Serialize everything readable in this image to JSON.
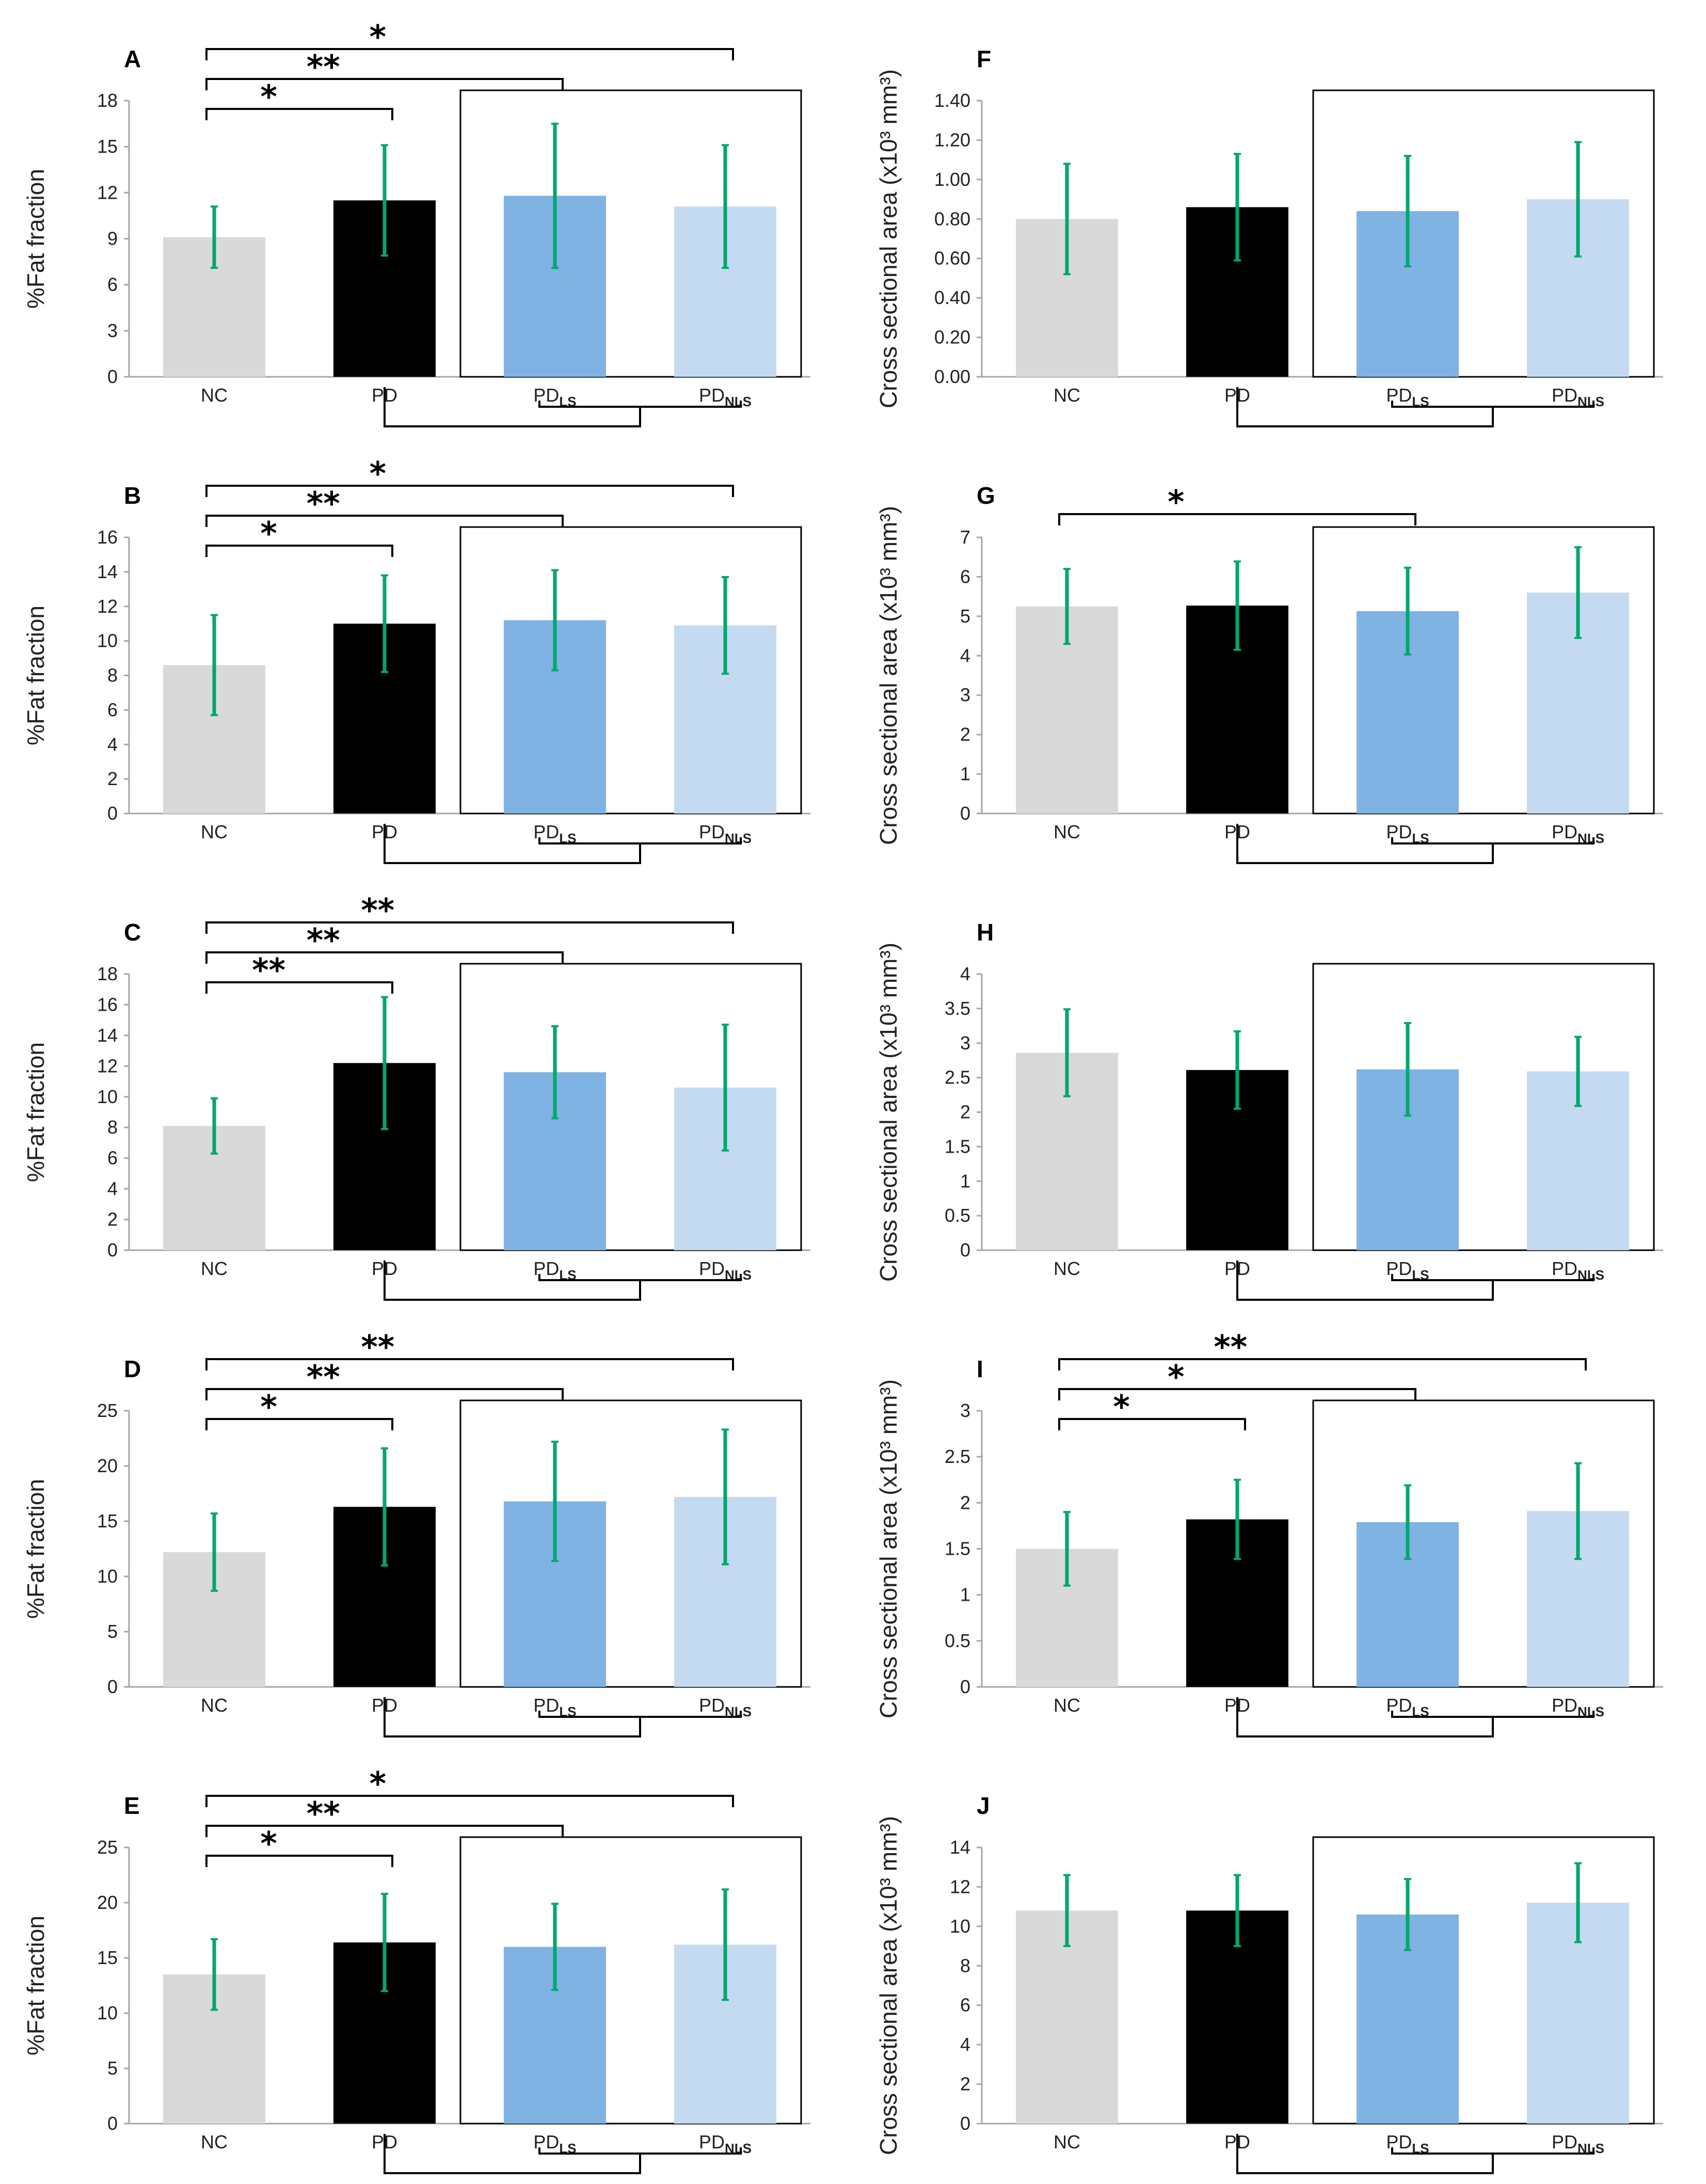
{
  "colors": {
    "NC": "#d9d9d9",
    "PD": "#000000",
    "PD_LS": "#7fb3e3",
    "PD_NLS": "#c3daf1",
    "error": "#00a86b",
    "axis": "#a6a6a6",
    "bracket": "#000000"
  },
  "chart_data": [
    {
      "id": "A",
      "letter": "A",
      "type": "bar",
      "ylabel": "%Fat fraction",
      "categories": [
        {
          "base": "NC",
          "sub": ""
        },
        {
          "base": "PD",
          "sub": ""
        },
        {
          "base": "PD",
          "sub": "LS"
        },
        {
          "base": "PD",
          "sub": "NLS"
        }
      ],
      "values": [
        9.1,
        11.5,
        11.8,
        11.1
      ],
      "errors": [
        2.0,
        3.6,
        4.7,
        4.0
      ],
      "yticks": [
        "0",
        "3",
        "6",
        "9",
        "12",
        "15",
        "18"
      ],
      "ylim": [
        0,
        18
      ],
      "significance": [
        {
          "from": 0,
          "to": 1,
          "label": "*"
        },
        {
          "from": 0,
          "to": 2,
          "label": "**"
        },
        {
          "from": 0,
          "to": 3,
          "label": "*"
        }
      ]
    },
    {
      "id": "B",
      "letter": "B",
      "type": "bar",
      "ylabel": "%Fat fraction",
      "categories": [
        {
          "base": "NC",
          "sub": ""
        },
        {
          "base": "PD",
          "sub": ""
        },
        {
          "base": "PD",
          "sub": "LS"
        },
        {
          "base": "PD",
          "sub": "NLS"
        }
      ],
      "values": [
        8.6,
        11.0,
        11.2,
        10.9
      ],
      "errors": [
        2.9,
        2.8,
        2.9,
        2.8
      ],
      "yticks": [
        "0",
        "2",
        "4",
        "6",
        "8",
        "10",
        "12",
        "14",
        "16"
      ],
      "ylim": [
        0,
        16
      ],
      "significance": [
        {
          "from": 0,
          "to": 1,
          "label": "*"
        },
        {
          "from": 0,
          "to": 2,
          "label": "**"
        },
        {
          "from": 0,
          "to": 3,
          "label": "*"
        }
      ]
    },
    {
      "id": "C",
      "letter": "C",
      "type": "bar",
      "ylabel": "%Fat fraction",
      "categories": [
        {
          "base": "NC",
          "sub": ""
        },
        {
          "base": "PD",
          "sub": ""
        },
        {
          "base": "PD",
          "sub": "LS"
        },
        {
          "base": "PD",
          "sub": "NLS"
        }
      ],
      "values": [
        8.1,
        12.2,
        11.6,
        10.6
      ],
      "errors": [
        1.8,
        4.3,
        3.0,
        4.1
      ],
      "yticks": [
        "0",
        "2",
        "4",
        "6",
        "8",
        "10",
        "12",
        "14",
        "16",
        "18"
      ],
      "ylim": [
        0,
        18
      ],
      "significance": [
        {
          "from": 0,
          "to": 1,
          "label": "**"
        },
        {
          "from": 0,
          "to": 2,
          "label": "**"
        },
        {
          "from": 0,
          "to": 3,
          "label": "**"
        }
      ]
    },
    {
      "id": "D",
      "letter": "D",
      "type": "bar",
      "ylabel": "%Fat fraction",
      "categories": [
        {
          "base": "NC",
          "sub": ""
        },
        {
          "base": "PD",
          "sub": ""
        },
        {
          "base": "PD",
          "sub": "LS"
        },
        {
          "base": "PD",
          "sub": "NLS"
        }
      ],
      "values": [
        12.2,
        16.3,
        16.8,
        17.2
      ],
      "errors": [
        3.5,
        5.3,
        5.4,
        6.1
      ],
      "yticks": [
        "0",
        "5",
        "10",
        "15",
        "20",
        "25"
      ],
      "ylim": [
        0,
        25
      ],
      "significance": [
        {
          "from": 0,
          "to": 1,
          "label": "*"
        },
        {
          "from": 0,
          "to": 2,
          "label": "**"
        },
        {
          "from": 0,
          "to": 3,
          "label": "**"
        }
      ]
    },
    {
      "id": "E",
      "letter": "E",
      "type": "bar",
      "ylabel": "%Fat fraction",
      "categories": [
        {
          "base": "NC",
          "sub": ""
        },
        {
          "base": "PD",
          "sub": ""
        },
        {
          "base": "PD",
          "sub": "LS"
        },
        {
          "base": "PD",
          "sub": "NLS"
        }
      ],
      "values": [
        13.5,
        16.4,
        16.0,
        16.2
      ],
      "errors": [
        3.2,
        4.4,
        3.9,
        5.0
      ],
      "yticks": [
        "0",
        "5",
        "10",
        "15",
        "20",
        "25"
      ],
      "ylim": [
        0,
        25
      ],
      "significance": [
        {
          "from": 0,
          "to": 1,
          "label": "*"
        },
        {
          "from": 0,
          "to": 2,
          "label": "**"
        },
        {
          "from": 0,
          "to": 3,
          "label": "*"
        }
      ]
    },
    {
      "id": "F",
      "letter": "F",
      "type": "bar",
      "ylabel": "Cross sectional area (x10³ mm³)",
      "categories": [
        {
          "base": "NC",
          "sub": ""
        },
        {
          "base": "PD",
          "sub": ""
        },
        {
          "base": "PD",
          "sub": "LS"
        },
        {
          "base": "PD",
          "sub": "NLS"
        }
      ],
      "values": [
        0.8,
        0.86,
        0.84,
        0.9
      ],
      "errors": [
        0.28,
        0.27,
        0.28,
        0.29
      ],
      "yticks": [
        "0.00",
        "0.20",
        "0.40",
        "0.60",
        "0.80",
        "1.00",
        "1.20",
        "1.40"
      ],
      "ylim": [
        0,
        1.4
      ],
      "significance": []
    },
    {
      "id": "G",
      "letter": "G",
      "type": "bar",
      "ylabel": "Cross sectional area (x10³ mm³)",
      "categories": [
        {
          "base": "NC",
          "sub": ""
        },
        {
          "base": "PD",
          "sub": ""
        },
        {
          "base": "PD",
          "sub": "LS"
        },
        {
          "base": "PD",
          "sub": "NLS"
        }
      ],
      "values": [
        5.25,
        5.27,
        5.13,
        5.6
      ],
      "errors": [
        0.95,
        1.12,
        1.1,
        1.15
      ],
      "yticks": [
        "0",
        "1",
        "2",
        "3",
        "4",
        "5",
        "6",
        "7"
      ],
      "ylim": [
        0,
        7
      ],
      "significance": [
        {
          "from": 0,
          "to": 2,
          "label": "*"
        }
      ]
    },
    {
      "id": "H",
      "letter": "H",
      "type": "bar",
      "ylabel": "Cross sectional area (x10³ mm³)",
      "categories": [
        {
          "base": "NC",
          "sub": ""
        },
        {
          "base": "PD",
          "sub": ""
        },
        {
          "base": "PD",
          "sub": "LS"
        },
        {
          "base": "PD",
          "sub": "NLS"
        }
      ],
      "values": [
        2.86,
        2.61,
        2.62,
        2.59
      ],
      "errors": [
        0.63,
        0.56,
        0.67,
        0.5
      ],
      "yticks": [
        "0",
        "0.5",
        "1",
        "1.5",
        "2",
        "2.5",
        "3",
        "3.5",
        "4"
      ],
      "ylim": [
        0,
        4
      ],
      "significance": []
    },
    {
      "id": "I",
      "letter": "I",
      "type": "bar",
      "ylabel": "Cross sectional area (x10³ mm³)",
      "categories": [
        {
          "base": "NC",
          "sub": ""
        },
        {
          "base": "PD",
          "sub": ""
        },
        {
          "base": "PD",
          "sub": "LS"
        },
        {
          "base": "PD",
          "sub": "NLS"
        }
      ],
      "values": [
        1.5,
        1.82,
        1.79,
        1.91
      ],
      "errors": [
        0.4,
        0.43,
        0.4,
        0.52
      ],
      "yticks": [
        "0",
        "0.5",
        "1",
        "1.5",
        "2",
        "2.5",
        "3"
      ],
      "ylim": [
        0,
        3
      ],
      "significance": [
        {
          "from": 0,
          "to": 1,
          "label": "*"
        },
        {
          "from": 0,
          "to": 2,
          "label": "*"
        },
        {
          "from": 0,
          "to": 3,
          "label": "**"
        }
      ]
    },
    {
      "id": "J",
      "letter": "J",
      "type": "bar",
      "ylabel": "Cross sectional area (x10³ mm³)",
      "categories": [
        {
          "base": "NC",
          "sub": ""
        },
        {
          "base": "PD",
          "sub": ""
        },
        {
          "base": "PD",
          "sub": "LS"
        },
        {
          "base": "PD",
          "sub": "NLS"
        }
      ],
      "values": [
        10.8,
        10.8,
        10.6,
        11.2
      ],
      "errors": [
        1.8,
        1.8,
        1.8,
        2.0
      ],
      "yticks": [
        "0",
        "2",
        "4",
        "6",
        "8",
        "10",
        "12",
        "14"
      ],
      "ylim": [
        0,
        14
      ],
      "significance": []
    }
  ]
}
